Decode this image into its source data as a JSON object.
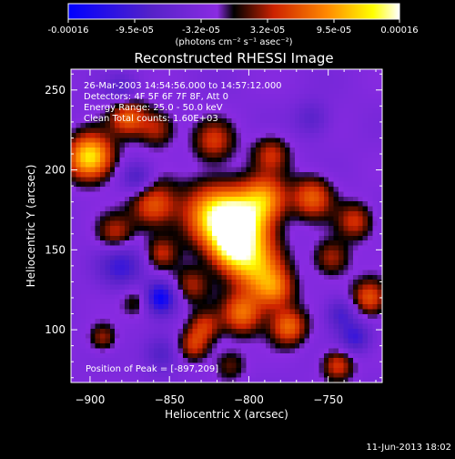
{
  "colorbar": {
    "ticks": [
      "-0.00016",
      "-9.5e-05",
      "-3.2e-05",
      "3.2e-05",
      "9.5e-05",
      "0.00016"
    ],
    "unit_label": "(photons cm⁻² s⁻¹ asec⁻²)"
  },
  "title": "Reconstructed RHESSI Image",
  "info_lines": [
    "26-Mar-2003 14:54:56.000 to 14:57:12.000",
    "Detectors: 4F 5F 6F 7F 8F, Att 0",
    "Energy Range: 25.0 - 50.0 keV",
    "Clean     Total counts: 1.60E+03"
  ],
  "peak_label": "Position of Peak = [-897,209]",
  "footer_date": "11-Jun-2013 18:02",
  "chart_data": {
    "type": "heatmap",
    "title": "Reconstructed RHESSI Image",
    "xlabel": "Heliocentric X (arcsec)",
    "ylabel": "Heliocentric Y (arcsec)",
    "xlim": [
      -912,
      -716
    ],
    "ylim": [
      67,
      263
    ],
    "x_ticks": [
      -900,
      -850,
      -800,
      -750
    ],
    "y_ticks": [
      100,
      150,
      200,
      250
    ],
    "x_tick_labels": [
      "−900",
      "−850",
      "−800",
      "−750"
    ],
    "y_tick_labels": [
      "100",
      "150",
      "200",
      "250"
    ],
    "color_range": [
      -0.00016,
      0.00016
    ],
    "colormap": [
      "#0000ff",
      "#5522c8",
      "#8a2be2",
      "#000000",
      "#cc2200",
      "#ff8800",
      "#ffff00",
      "#ffffff"
    ],
    "peak": [
      -897,
      209
    ],
    "blobs": [
      {
        "x": -806,
        "y": 165,
        "s": 13,
        "a": 1.25
      },
      {
        "x": -822,
        "y": 172,
        "s": 14,
        "a": 0.9
      },
      {
        "x": -790,
        "y": 182,
        "s": 10,
        "a": 0.8
      },
      {
        "x": -812,
        "y": 150,
        "s": 9,
        "a": 0.6
      },
      {
        "x": -797,
        "y": 140,
        "s": 12,
        "a": 0.85
      },
      {
        "x": -784,
        "y": 125,
        "s": 9,
        "a": 0.7
      },
      {
        "x": -804,
        "y": 110,
        "s": 9,
        "a": 0.75
      },
      {
        "x": -775,
        "y": 102,
        "s": 8,
        "a": 0.75
      },
      {
        "x": -836,
        "y": 128,
        "s": 8,
        "a": 0.45
      },
      {
        "x": -828,
        "y": 102,
        "s": 7,
        "a": 0.5
      },
      {
        "x": -835,
        "y": 90,
        "s": 7,
        "a": 0.55
      },
      {
        "x": -860,
        "y": 178,
        "s": 10,
        "a": 0.7
      },
      {
        "x": -884,
        "y": 160,
        "s": 8,
        "a": 0.5
      },
      {
        "x": -876,
        "y": 233,
        "s": 8,
        "a": 0.7
      },
      {
        "x": -900,
        "y": 208,
        "s": 10,
        "a": 1.2
      },
      {
        "x": -858,
        "y": 226,
        "s": 8,
        "a": 0.5
      },
      {
        "x": -822,
        "y": 218,
        "s": 9,
        "a": 0.55
      },
      {
        "x": -786,
        "y": 210,
        "s": 8,
        "a": 0.5
      },
      {
        "x": -760,
        "y": 183,
        "s": 9,
        "a": 0.7
      },
      {
        "x": -733,
        "y": 168,
        "s": 8,
        "a": 0.55
      },
      {
        "x": -748,
        "y": 145,
        "s": 8,
        "a": 0.5
      },
      {
        "x": -724,
        "y": 120,
        "s": 8,
        "a": 0.7
      },
      {
        "x": -744,
        "y": 78,
        "s": 7,
        "a": 0.6
      },
      {
        "x": -812,
        "y": 78,
        "s": 7,
        "a": 0.35
      },
      {
        "x": -870,
        "y": 118,
        "s": 7,
        "a": 0.35
      },
      {
        "x": -892,
        "y": 95,
        "s": 6,
        "a": 0.45
      },
      {
        "x": -855,
        "y": 148,
        "s": 7,
        "a": 0.45
      },
      {
        "x": -856,
        "y": 120,
        "s": 7,
        "a": -0.9
      },
      {
        "x": -880,
        "y": 140,
        "s": 10,
        "a": -0.55
      },
      {
        "x": -870,
        "y": 195,
        "s": 7,
        "a": -0.5
      },
      {
        "x": -742,
        "y": 110,
        "s": 7,
        "a": -0.5
      },
      {
        "x": -733,
        "y": 95,
        "s": 7,
        "a": -0.55
      },
      {
        "x": -855,
        "y": 85,
        "s": 8,
        "a": -0.45
      },
      {
        "x": -760,
        "y": 232,
        "s": 8,
        "a": -0.35
      },
      {
        "x": -880,
        "y": 250,
        "s": 7,
        "a": -0.35
      }
    ]
  }
}
